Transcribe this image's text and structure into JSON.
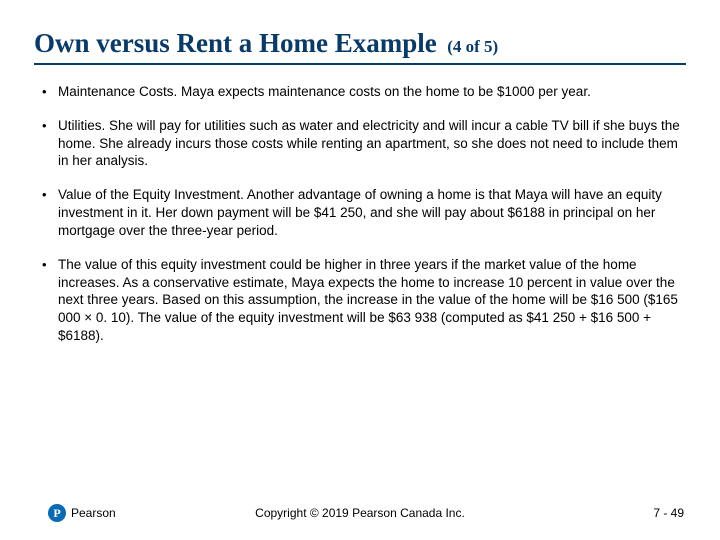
{
  "colors": {
    "title": "#0a3a66",
    "underline": "#0a3a66",
    "logo_bg": "#0a6bb3",
    "text": "#000000",
    "background": "#ffffff"
  },
  "typography": {
    "title_family": "Times New Roman",
    "title_size_pt": 27,
    "title_weight": 700,
    "title_sub_size_pt": 17,
    "body_family": "Arial",
    "body_size_pt": 13.5,
    "body_line_height": 1.32,
    "footer_size_pt": 12
  },
  "title": {
    "main": "Own versus Rent a Home Example",
    "sub": "(4 of 5)"
  },
  "bullets": [
    "Maintenance Costs. Maya expects maintenance costs on the home to be $1000 per year.",
    "Utilities. She will pay for utilities such as water and electricity and will incur a cable TV bill if she buys the home. She already incurs those costs while renting an apartment, so she does not need to include them in her analysis.",
    "Value of the Equity Investment. Another advantage of owning a home is that Maya will have an equity investment in it. Her down payment will be $41 250, and she will pay about $6188 in principal on her mortgage over the three-year period.",
    "The value of this equity investment could be higher in three years if the market value of the home increases. As a conservative estimate, Maya expects the home to increase 10 percent in value over the next three years. Based on this assumption, the increase in the value of the home will be $16 500 ($165 000 × 0. 10). The value of the equity investment will be $63 938 (computed as $41 250 + $16 500 + $6188)."
  ],
  "footer": {
    "logo_letter": "P",
    "logo_brand": "Pearson",
    "copyright": "Copyright © 2019 Pearson Canada Inc.",
    "page": "7 - 49"
  }
}
